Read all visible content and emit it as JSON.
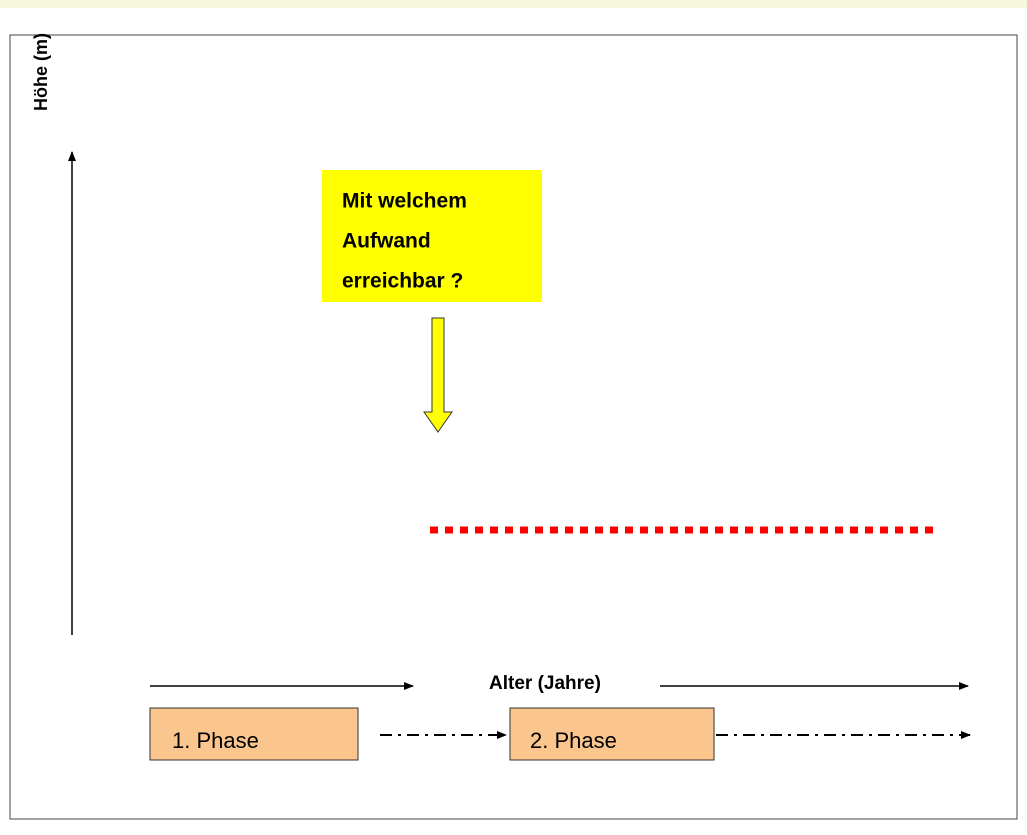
{
  "y_axis_label": "Höhe (m)",
  "x_axis_label": "Alter (Jahre)",
  "callout": {
    "lines": [
      "Mit welchem",
      "Aufwand",
      "erreichbar ?"
    ]
  },
  "phases": [
    "1. Phase",
    "2. Phase"
  ]
}
